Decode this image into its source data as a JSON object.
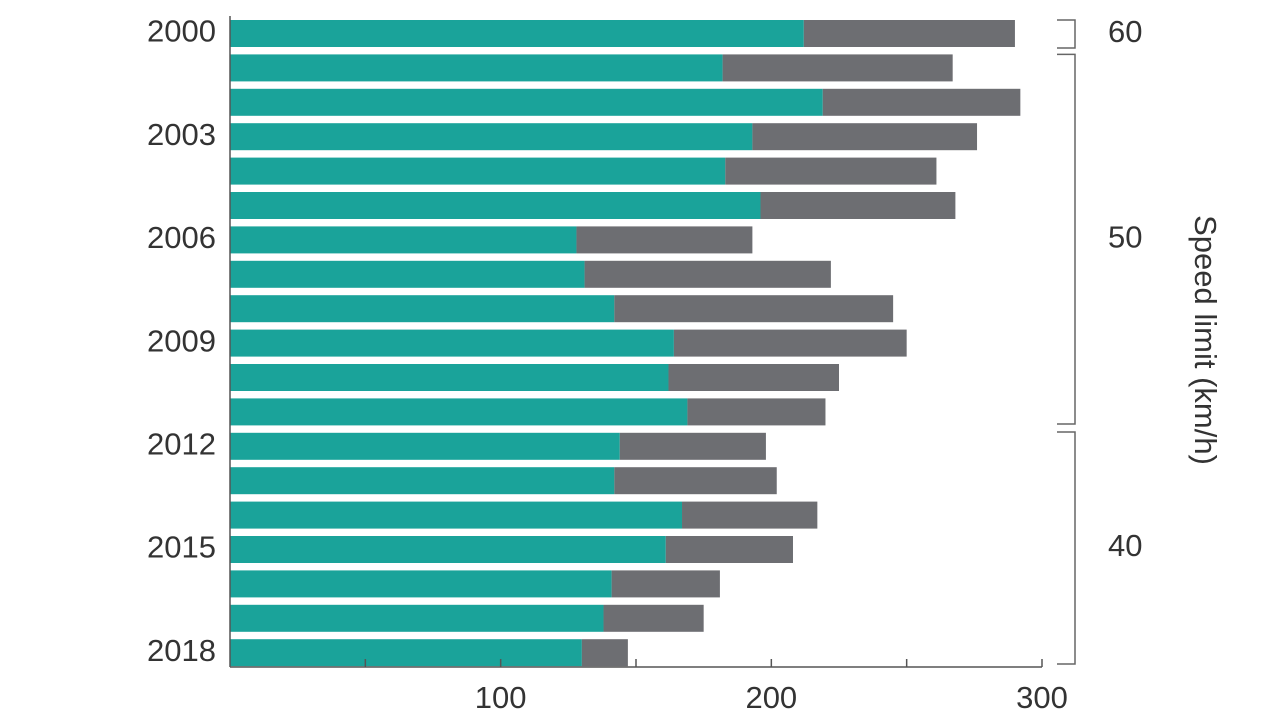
{
  "chart_data": {
    "type": "bar",
    "orientation": "horizontal",
    "stacked": true,
    "categories": [
      "2000",
      "2001",
      "2002",
      "2003",
      "2004",
      "2005",
      "2006",
      "2007",
      "2008",
      "2009",
      "2010",
      "2011",
      "2012",
      "2013",
      "2014",
      "2015",
      "2016",
      "2017",
      "2018"
    ],
    "tick_labels": [
      "2000",
      "2003",
      "2006",
      "2009",
      "2012",
      "2015",
      "2018"
    ],
    "series": [
      {
        "color": "#1aa39a",
        "values": [
          212,
          182,
          219,
          193,
          183,
          196,
          128,
          131,
          142,
          164,
          162,
          169,
          144,
          142,
          167,
          161,
          141,
          138,
          130
        ]
      },
      {
        "color": "#6d6e72",
        "values": [
          78,
          85,
          73,
          83,
          78,
          72,
          65,
          91,
          103,
          86,
          63,
          51,
          54,
          60,
          50,
          47,
          40,
          37,
          17
        ]
      }
    ],
    "xlim": [
      0,
      300
    ],
    "x_ticks": [
      100,
      200,
      300
    ],
    "x_tick_labels": [
      "100",
      "200",
      "300"
    ],
    "ylabel": "Speed limit (km/h)",
    "speed_limit_groups": [
      {
        "label": "60",
        "from": "2000",
        "to": "2000"
      },
      {
        "label": "50",
        "from": "2001",
        "to": "2011"
      },
      {
        "label": "40",
        "from": "2012",
        "to": "2018"
      }
    ],
    "grid": false
  }
}
